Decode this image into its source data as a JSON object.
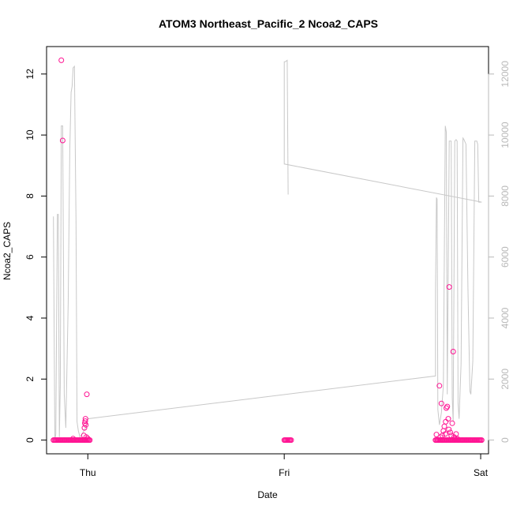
{
  "chart_data": {
    "type": "scatter",
    "title": "ATOM3 Northeast_Pacific_2 Ncoa2_CAPS",
    "xlabel": "Date",
    "ylabel": "Ncoa2_CAPS",
    "x_ticks": [
      "Thu",
      "Fri",
      "Sat"
    ],
    "y_ticks": [
      "0",
      "2",
      "4",
      "6",
      "8",
      "10",
      "12"
    ],
    "y2_ticks": [
      "0",
      "2000",
      "4000",
      "6000",
      "8000",
      "10000",
      "12000"
    ],
    "ylim": [
      -0.45,
      12.9
    ],
    "y2lim": [
      -450,
      12900
    ],
    "xlim_days": [
      -0.21,
      2.04
    ],
    "grid": false,
    "colors": {
      "points": "#ff1493",
      "altitude_line": "#c8c8c8",
      "right_axis": "#b8b8b8",
      "axis": "#000000"
    },
    "series": [
      {
        "kind": "points",
        "x_days": [
          -0.175,
          -0.17,
          -0.165,
          -0.16,
          -0.155,
          -0.15,
          -0.145,
          -0.14,
          -0.135,
          -0.13,
          -0.125,
          -0.12,
          -0.115,
          -0.11,
          -0.105,
          -0.1,
          -0.095,
          -0.09,
          -0.085,
          -0.08,
          -0.075,
          -0.07,
          -0.065,
          -0.06,
          -0.055,
          -0.05,
          -0.045,
          -0.04,
          -0.035,
          -0.03,
          -0.025,
          -0.02,
          -0.015,
          -0.01,
          -0.005,
          -0.135,
          -0.128,
          -0.075,
          -0.02,
          -0.017,
          -0.015,
          -0.013,
          -0.012,
          -0.01,
          -0.008,
          -0.005,
          0.0,
          0.0,
          0.005,
          0.01,
          1.0,
          1.005,
          1.01,
          1.015,
          1.02,
          1.025,
          1.03,
          1.035,
          1.77,
          1.775,
          1.78,
          1.785,
          1.79,
          1.795,
          1.8,
          1.805,
          1.81,
          1.815,
          1.82,
          1.825,
          1.83,
          1.835,
          1.84,
          1.845,
          1.85,
          1.855,
          1.86,
          1.865,
          1.87,
          1.875,
          1.88,
          1.885,
          1.89,
          1.895,
          1.9,
          1.905,
          1.91,
          1.915,
          1.92,
          1.925,
          1.93,
          1.935,
          1.94,
          1.945,
          1.95,
          1.955,
          1.96,
          1.965,
          1.97,
          1.975,
          1.98,
          1.985,
          1.99,
          1.995,
          2.0,
          2.005,
          1.775,
          1.79,
          1.795,
          1.8,
          1.805,
          1.81,
          1.815,
          1.82,
          1.822,
          1.825,
          1.83,
          1.835,
          1.838,
          1.84,
          1.845,
          1.85,
          1.855,
          1.86,
          1.865,
          1.87,
          1.875,
          1.88
        ],
        "y": [
          0,
          0,
          0,
          0,
          0,
          0,
          0,
          0,
          0,
          0,
          0,
          0,
          0,
          0,
          0,
          0,
          0,
          0,
          0,
          0,
          0,
          0,
          0,
          0,
          0,
          0,
          0,
          0,
          0,
          0,
          0,
          0,
          0,
          0,
          0,
          12.45,
          9.82,
          0.05,
          0.15,
          0.4,
          0.55,
          0.62,
          0.7,
          0.5,
          0.1,
          1.5,
          0.05,
          0,
          0,
          0,
          0,
          0,
          0,
          0,
          0,
          0,
          0,
          0,
          0,
          0,
          0,
          0,
          0,
          0,
          0,
          0,
          0,
          0,
          0,
          0,
          0,
          0,
          0,
          0,
          0,
          0,
          0,
          0,
          0,
          0,
          0,
          0,
          0,
          0,
          0,
          0,
          0,
          0,
          0,
          0,
          0,
          0,
          0,
          0,
          0,
          0,
          0,
          0,
          0,
          0,
          0,
          0,
          0,
          0,
          0,
          0,
          0.18,
          1.78,
          0.1,
          1.2,
          0.15,
          0.3,
          0.45,
          0.2,
          0.6,
          1.05,
          1.1,
          0.7,
          0.35,
          5.02,
          0.25,
          0.15,
          0.55,
          2.9,
          0.1,
          0.05,
          0.2,
          0.05
        ]
      },
      {
        "kind": "line",
        "axis": "right",
        "x_days": [
          -0.175,
          -0.168,
          -0.163,
          -0.155,
          -0.15,
          -0.145,
          -0.14,
          -0.135,
          -0.128,
          -0.12,
          -0.112,
          -0.1,
          -0.092,
          -0.085,
          -0.08,
          -0.075,
          -0.068,
          -0.06,
          -0.055,
          -0.048,
          -0.04,
          -0.03,
          -0.02,
          -0.012,
          -0.005,
          0.0,
          1.77,
          1.77,
          1.775,
          1.778,
          1.782,
          1.79,
          1.8,
          1.81,
          1.82,
          1.825,
          1.83,
          1.84,
          1.85,
          1.855,
          1.86,
          1.868,
          1.875,
          1.88,
          1.885,
          1.89,
          1.9,
          1.91,
          1.915,
          1.925,
          1.935,
          1.945,
          1.95,
          1.96,
          1.97,
          1.975,
          1.98,
          1.985,
          1.99,
          2.005,
          1.0,
          1.0,
          1.005,
          1.015,
          1.02,
          1.02
        ],
        "y_m": [
          7330,
          0,
          200,
          7400,
          7400,
          100,
          1800,
          10300,
          10300,
          1500,
          400,
          4500,
          9500,
          11400,
          11600,
          12200,
          12250,
          7200,
          600,
          300,
          100,
          200,
          300,
          400,
          500,
          700,
          2100,
          4900,
          7950,
          7900,
          1000,
          500,
          900,
          1800,
          10300,
          10100,
          1500,
          9800,
          9800,
          1400,
          600,
          9800,
          9850,
          9800,
          1200,
          700,
          2500,
          9900,
          9850,
          9700,
          5000,
          1600,
          1500,
          2600,
          9800,
          9800,
          9800,
          9700,
          7800,
          7800,
          9050,
          12400,
          12400,
          12450,
          8050,
          8050
        ]
      }
    ]
  }
}
